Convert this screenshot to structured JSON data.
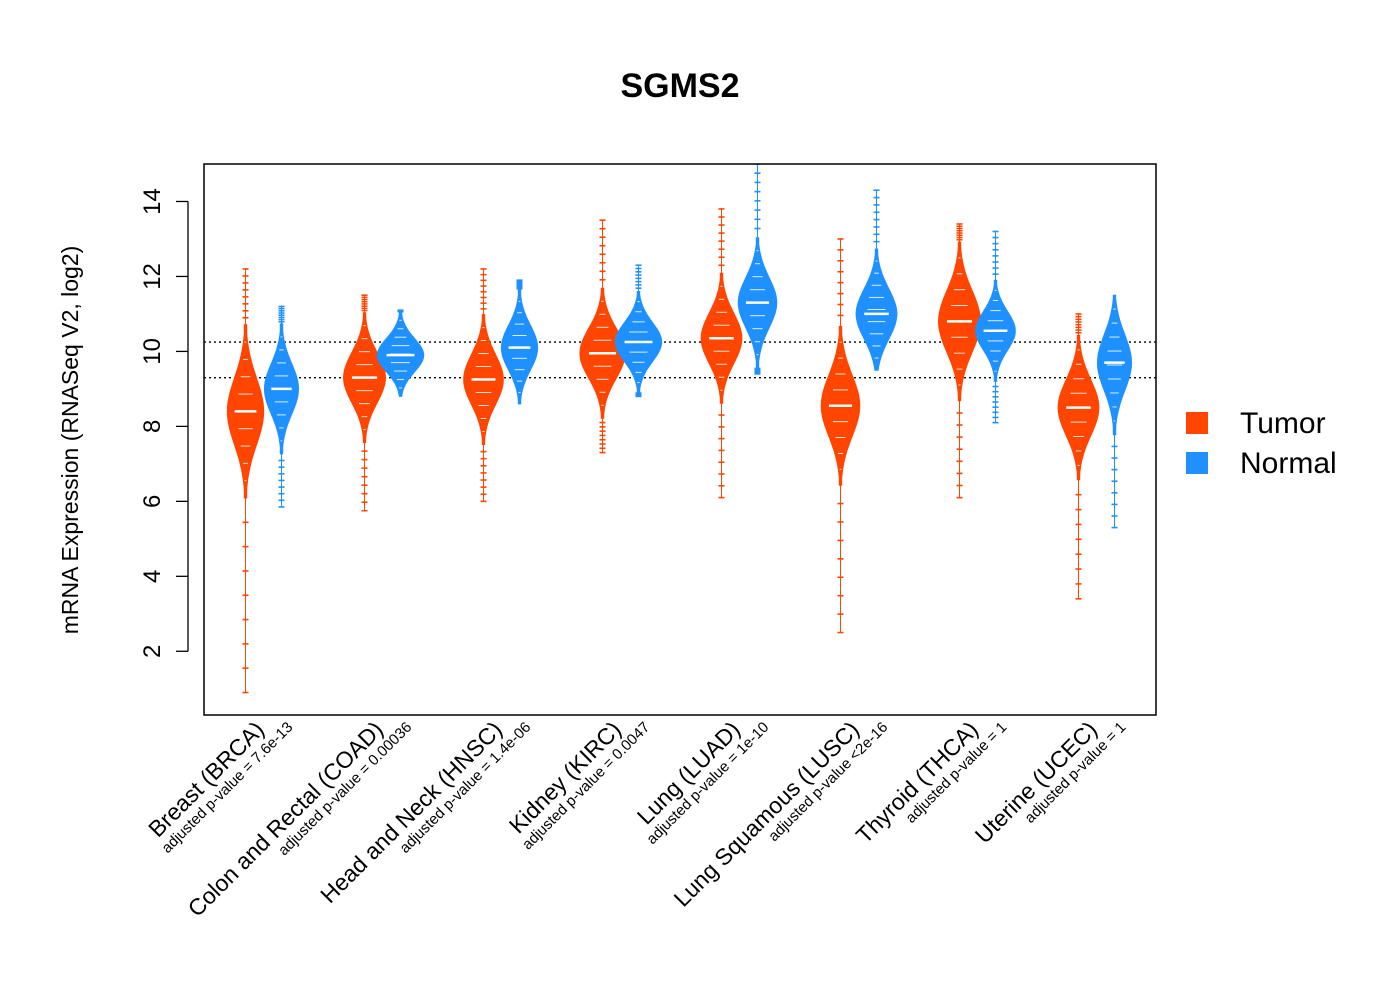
{
  "chart_data": {
    "type": "violin",
    "title": "SGMS2",
    "xlabel": "",
    "ylabel": "mRNA Expression (RNASeq V2, log2)",
    "ylim": [
      0.3,
      15.0
    ],
    "yticks": [
      2,
      4,
      6,
      8,
      10,
      12,
      14
    ],
    "reference_lines": [
      9.3,
      10.25
    ],
    "legend_position": "right",
    "series": [
      {
        "name": "Tumor",
        "color": "#FF4500"
      },
      {
        "name": "Normal",
        "color": "#1E90FF"
      }
    ],
    "groups": [
      {
        "label": "Breast (BRCA)",
        "pvalue_label": "adjusted p-value = 7.6e-13",
        "tumor": {
          "median": 8.4,
          "q1": 7.8,
          "q3": 9.0,
          "min": 0.9,
          "max": 12.2,
          "width": 0.22
        },
        "normal": {
          "median": 9.0,
          "q1": 8.6,
          "q3": 9.5,
          "min": 5.85,
          "max": 11.2,
          "width": 0.18
        }
      },
      {
        "label": "Colon and Rectal (COAD)",
        "pvalue_label": "adjusted p-value = 0.00036",
        "tumor": {
          "median": 9.3,
          "q1": 8.9,
          "q3": 9.8,
          "min": 5.75,
          "max": 11.5,
          "width": 0.32
        },
        "normal": {
          "median": 9.9,
          "q1": 9.6,
          "q3": 10.2,
          "min": 8.8,
          "max": 11.1,
          "width": 0.4
        }
      },
      {
        "label": "Head and Neck (HNSC)",
        "pvalue_label": "adjusted p-value = 1.4e-06",
        "tumor": {
          "median": 9.25,
          "q1": 8.8,
          "q3": 9.7,
          "min": 6.0,
          "max": 12.2,
          "width": 0.28
        },
        "normal": {
          "median": 10.1,
          "q1": 9.7,
          "q3": 10.5,
          "min": 8.6,
          "max": 11.9,
          "width": 0.22
        }
      },
      {
        "label": "Kidney (KIRC)",
        "pvalue_label": "adjusted p-value = 0.0047",
        "tumor": {
          "median": 9.95,
          "q1": 9.5,
          "q3": 10.4,
          "min": 7.3,
          "max": 13.5,
          "width": 0.38
        },
        "normal": {
          "median": 10.25,
          "q1": 9.9,
          "q3": 10.6,
          "min": 8.8,
          "max": 12.3,
          "width": 0.4
        }
      },
      {
        "label": "Lung (LUAD)",
        "pvalue_label": "adjusted p-value = 1e-10",
        "tumor": {
          "median": 10.35,
          "q1": 9.9,
          "q3": 10.8,
          "min": 6.1,
          "max": 13.8,
          "width": 0.3
        },
        "normal": {
          "median": 11.3,
          "q1": 10.9,
          "q3": 11.8,
          "min": 9.4,
          "max": 15.0,
          "width": 0.26
        }
      },
      {
        "label": "Lung Squamous (LUSC)",
        "pvalue_label": "adjusted p-value <2e-16",
        "tumor": {
          "median": 8.55,
          "q1": 8.0,
          "q3": 9.1,
          "min": 2.5,
          "max": 13.0,
          "width": 0.26
        },
        "normal": {
          "median": 11.0,
          "q1": 10.6,
          "q3": 11.5,
          "min": 9.5,
          "max": 14.3,
          "width": 0.3
        }
      },
      {
        "label": "Thyroid (THCA)",
        "pvalue_label": "adjusted p-value = 1",
        "tumor": {
          "median": 10.8,
          "q1": 10.3,
          "q3": 11.4,
          "min": 6.1,
          "max": 13.4,
          "width": 0.32
        },
        "normal": {
          "median": 10.55,
          "q1": 10.2,
          "q3": 10.9,
          "min": 8.1,
          "max": 13.2,
          "width": 0.28
        }
      },
      {
        "label": "Uterine (UCEC)",
        "pvalue_label": "adjusted p-value = 1",
        "tumor": {
          "median": 8.5,
          "q1": 8.0,
          "q3": 9.0,
          "min": 3.4,
          "max": 11.0,
          "width": 0.3
        },
        "normal": {
          "median": 9.7,
          "q1": 9.2,
          "q3": 10.2,
          "min": 5.3,
          "max": 11.5,
          "width": 0.18
        }
      }
    ]
  }
}
